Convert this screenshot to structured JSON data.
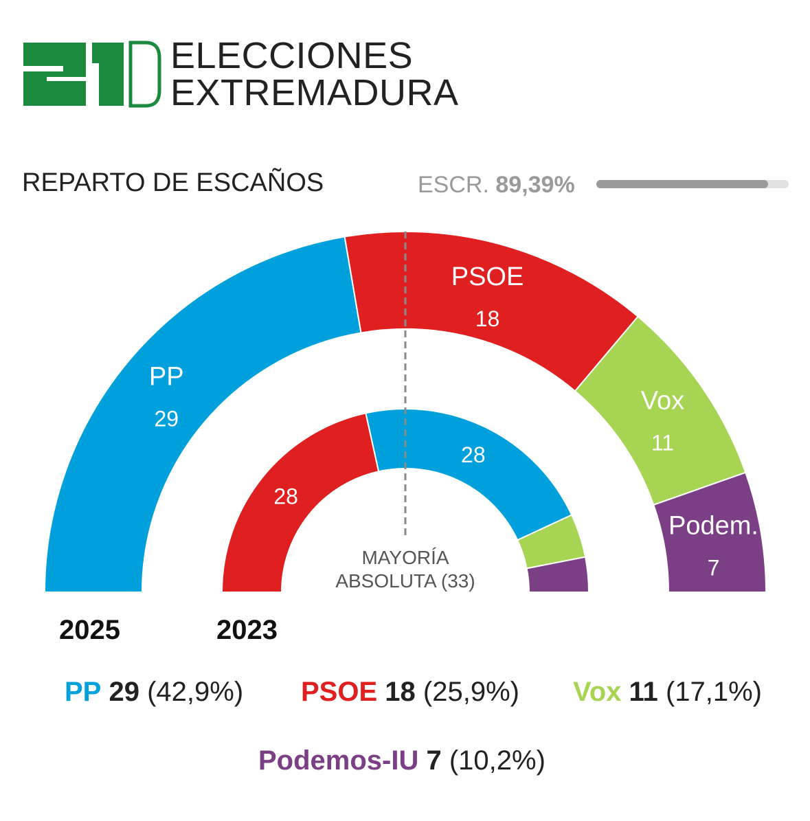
{
  "header": {
    "logo_text": "21D",
    "title_line1": "ELECCIONES",
    "title_line2": "EXTREMADURA"
  },
  "section_title": "REPARTO DE ESCAÑOS",
  "scrutiny": {
    "label": "ESCR.",
    "value": "89,39%",
    "fraction": 0.8939
  },
  "majority": {
    "line1": "MAYORÍA",
    "line2": "ABSOLUTA (33)",
    "seats": 33
  },
  "colors": {
    "pp": "#00a0dc",
    "psoe": "#e02020",
    "vox": "#a8d454",
    "podemos": "#7b3f85",
    "brand_green": "#1b8a3e"
  },
  "chart_data": [
    {
      "type": "hemicycle",
      "title": "2025",
      "total_seats": 65,
      "series": [
        {
          "party": "PP",
          "seats": 29,
          "label": "PP",
          "color": "#00a0dc"
        },
        {
          "party": "PSOE",
          "seats": 18,
          "label": "PSOE",
          "color": "#e02020"
        },
        {
          "party": "Vox",
          "seats": 11,
          "label": "Vox",
          "color": "#a8d454"
        },
        {
          "party": "Podemos-IU",
          "seats": 7,
          "label": "Podem.",
          "color": "#7b3f85"
        }
      ]
    },
    {
      "type": "hemicycle",
      "title": "2023",
      "total_seats": 65,
      "series": [
        {
          "party": "PSOE",
          "seats": 28,
          "label": "",
          "color": "#e02020"
        },
        {
          "party": "PP",
          "seats": 28,
          "label": "",
          "color": "#00a0dc"
        },
        {
          "party": "Vox",
          "seats": 5,
          "label": "",
          "color": "#a8d454"
        },
        {
          "party": "Podemos-IU",
          "seats": 4,
          "label": "",
          "color": "#7b3f85"
        }
      ]
    }
  ],
  "years": {
    "current": "2025",
    "previous": "2023"
  },
  "legend": [
    {
      "party": "PP",
      "seats": "29",
      "pct": "(42,9%)",
      "color": "#00a0dc"
    },
    {
      "party": "PSOE",
      "seats": "18",
      "pct": "(25,9%)",
      "color": "#e02020"
    },
    {
      "party": "Vox",
      "seats": "11",
      "pct": "(17,1%)",
      "color": "#a8d454"
    },
    {
      "party": "Podemos-IU",
      "seats": "7",
      "pct": "(10,2%)",
      "color": "#7b3f85"
    }
  ]
}
